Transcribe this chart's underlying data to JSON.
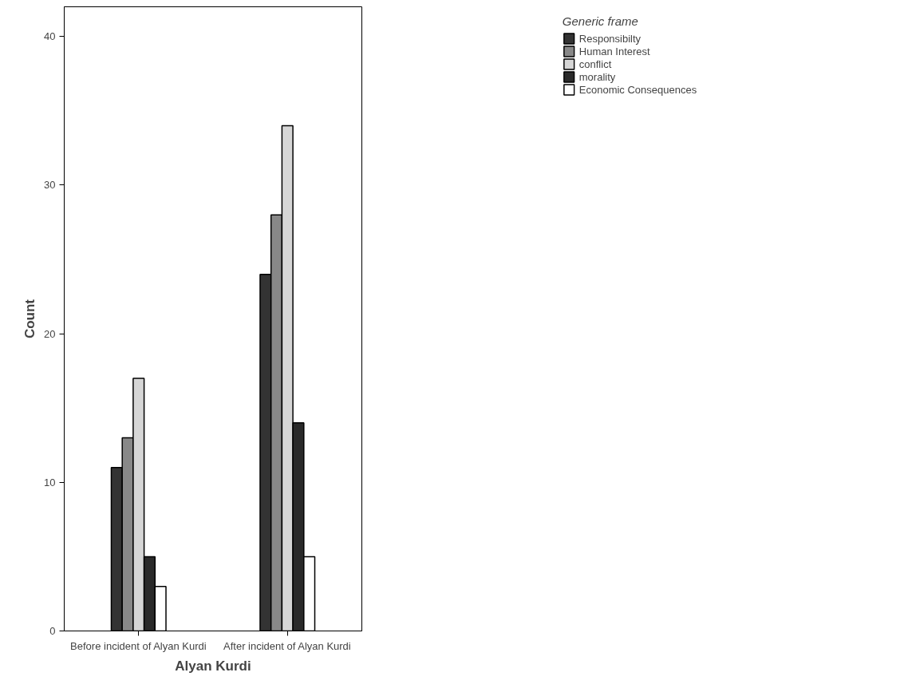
{
  "chart_data": {
    "type": "bar",
    "xlabel": "Alyan Kurdi",
    "ylabel": "Count",
    "legend_title": "Generic frame",
    "categories": [
      "Before incident of Alyan Kurdi",
      "After incident of Alyan Kurdi"
    ],
    "series": [
      {
        "name": "Responsibilty",
        "color": "#333333",
        "values": [
          11,
          24
        ]
      },
      {
        "name": "Human Interest",
        "color": "#888888",
        "values": [
          13,
          28
        ]
      },
      {
        "name": "conflict",
        "color": "#d6d6d6",
        "values": [
          17,
          34
        ]
      },
      {
        "name": "morality",
        "color": "#2a2a2a",
        "values": [
          5,
          14
        ]
      },
      {
        "name": "Economic Consequences",
        "color": "#ffffff",
        "values": [
          3,
          5
        ]
      }
    ],
    "ylim": [
      0,
      42
    ],
    "yticks": [
      0,
      10,
      20,
      30,
      40
    ],
    "grid": false,
    "legend": "right"
  }
}
